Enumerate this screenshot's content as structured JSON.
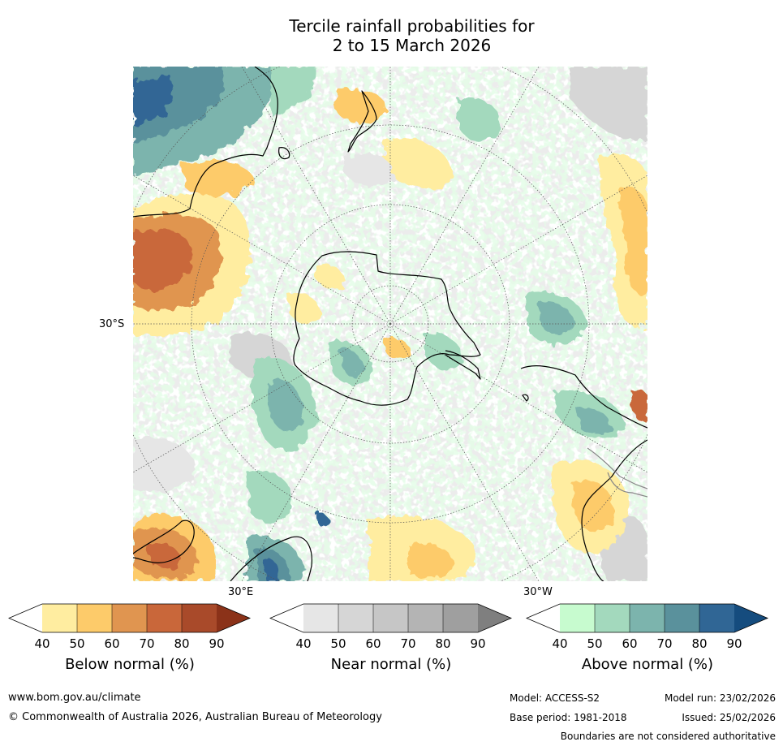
{
  "title": {
    "line1": "Tercile rainfall probabilities for",
    "line2": "2 to 15 March 2026"
  },
  "map": {
    "lat_label": "30°S",
    "lon_label_left": "30°E",
    "lon_label_right": "30°W",
    "projection": "south-polar-stereographic"
  },
  "colorbars": [
    {
      "name": "below",
      "label": "Below normal (%)",
      "ticks": [
        "40",
        "50",
        "60",
        "70",
        "80",
        "90"
      ],
      "colors": [
        "#ffffff",
        "#ffeda0",
        "#fdcb6a",
        "#e09550",
        "#c9673a",
        "#a94a2a",
        "#8b3219"
      ]
    },
    {
      "name": "near",
      "label": "Near normal (%)",
      "ticks": [
        "40",
        "50",
        "60",
        "70",
        "80",
        "90"
      ],
      "colors": [
        "#ffffff",
        "#e6e6e6",
        "#d6d6d6",
        "#c6c6c6",
        "#b4b4b4",
        "#9f9f9f",
        "#7f7f7f"
      ]
    },
    {
      "name": "above",
      "label": "Above normal (%)",
      "ticks": [
        "40",
        "50",
        "60",
        "70",
        "80",
        "90"
      ],
      "colors": [
        "#ffffff",
        "#c7fbcf",
        "#a3d9bd",
        "#7cb4ad",
        "#5a919c",
        "#306695",
        "#154c7e"
      ]
    }
  ],
  "footer": {
    "website": "www.bom.gov.au/climate",
    "copyright": "© Commonwealth of Australia 2026, Australian Bureau of Meteorology",
    "model": "Model: ACCESS-S2",
    "base_period": "Base period: 1981-2018",
    "model_run": "Model run: 23/02/2026",
    "issued": "Issued: 25/02/2026",
    "disclaimer": "Boundaries are not considered authoritative"
  }
}
